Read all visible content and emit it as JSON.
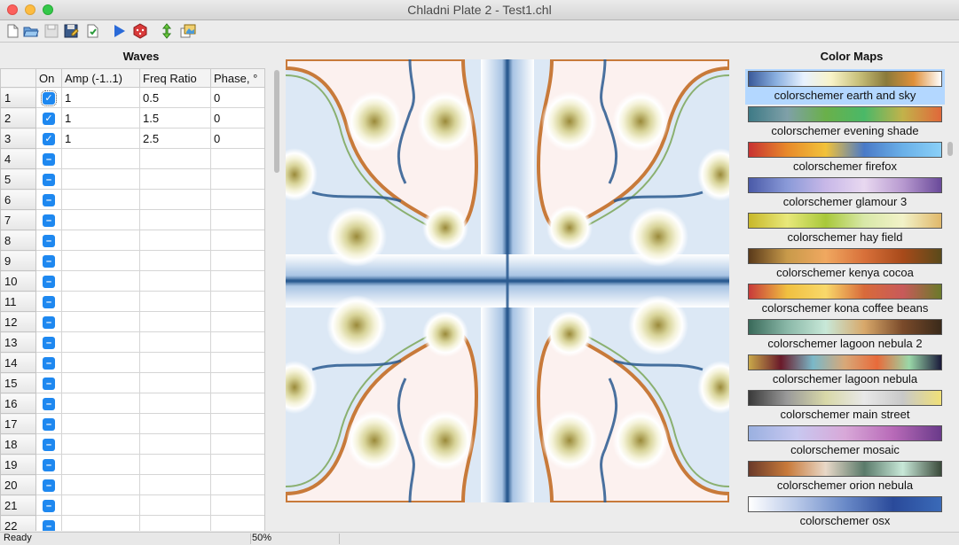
{
  "window": {
    "title": "Chladni Plate 2 - Test1.chl"
  },
  "toolbar": {
    "icons": [
      "new-file-icon",
      "open-folder-icon",
      "save-disabled-icon",
      "save-as-icon",
      "export-icon",
      "play-icon",
      "random-dice-icon",
      "animate-icon",
      "gallery-icon"
    ]
  },
  "waves": {
    "title": "Waves",
    "columns": [
      "",
      "On",
      "Amp (-1..1)",
      "Freq Ratio",
      "Phase, °"
    ],
    "rows": [
      {
        "n": "1",
        "on": true,
        "amp": "1",
        "freq": "0.5",
        "phase": "0"
      },
      {
        "n": "2",
        "on": true,
        "amp": "1",
        "freq": "1.5",
        "phase": "0"
      },
      {
        "n": "3",
        "on": true,
        "amp": "1",
        "freq": "2.5",
        "phase": "0"
      },
      {
        "n": "4",
        "on": false,
        "amp": "",
        "freq": "",
        "phase": ""
      },
      {
        "n": "5",
        "on": false,
        "amp": "",
        "freq": "",
        "phase": ""
      },
      {
        "n": "6",
        "on": false,
        "amp": "",
        "freq": "",
        "phase": ""
      },
      {
        "n": "7",
        "on": false,
        "amp": "",
        "freq": "",
        "phase": ""
      },
      {
        "n": "8",
        "on": false,
        "amp": "",
        "freq": "",
        "phase": ""
      },
      {
        "n": "9",
        "on": false,
        "amp": "",
        "freq": "",
        "phase": ""
      },
      {
        "n": "10",
        "on": false,
        "amp": "",
        "freq": "",
        "phase": ""
      },
      {
        "n": "11",
        "on": false,
        "amp": "",
        "freq": "",
        "phase": ""
      },
      {
        "n": "12",
        "on": false,
        "amp": "",
        "freq": "",
        "phase": ""
      },
      {
        "n": "13",
        "on": false,
        "amp": "",
        "freq": "",
        "phase": ""
      },
      {
        "n": "14",
        "on": false,
        "amp": "",
        "freq": "",
        "phase": ""
      },
      {
        "n": "15",
        "on": false,
        "amp": "",
        "freq": "",
        "phase": ""
      },
      {
        "n": "16",
        "on": false,
        "amp": "",
        "freq": "",
        "phase": ""
      },
      {
        "n": "17",
        "on": false,
        "amp": "",
        "freq": "",
        "phase": ""
      },
      {
        "n": "18",
        "on": false,
        "amp": "",
        "freq": "",
        "phase": ""
      },
      {
        "n": "19",
        "on": false,
        "amp": "",
        "freq": "",
        "phase": ""
      },
      {
        "n": "20",
        "on": false,
        "amp": "",
        "freq": "",
        "phase": ""
      },
      {
        "n": "21",
        "on": false,
        "amp": "",
        "freq": "",
        "phase": ""
      },
      {
        "n": "22",
        "on": false,
        "amp": "",
        "freq": "",
        "phase": ""
      }
    ],
    "check_on": "✓",
    "check_off": "–"
  },
  "colormaps": {
    "title": "Color Maps",
    "selected": 0,
    "items": [
      {
        "name": "colorschemer earth and sky",
        "colors": [
          "#3a5a9a",
          "#8ab0e0",
          "#e8f2ff",
          "#f8f3c8",
          "#c8c07a",
          "#8a7a3a",
          "#e0903a",
          "#ffffff"
        ]
      },
      {
        "name": "colorschemer evening shade",
        "colors": [
          "#3e7a86",
          "#7fa0a8",
          "#6ab04a",
          "#4ab868",
          "#c2b24a",
          "#e0683a"
        ]
      },
      {
        "name": "colorschemer firefox",
        "colors": [
          "#c83232",
          "#e88a2a",
          "#f2c23a",
          "#4a7ac8",
          "#6ab0e8",
          "#8ad0f8"
        ]
      },
      {
        "name": "colorschemer glamour 3",
        "colors": [
          "#4a5aa8",
          "#8a9ad8",
          "#c8b8e8",
          "#e8d8f0",
          "#b89ad0",
          "#6a4a9a"
        ]
      },
      {
        "name": "colorschemer hay field",
        "colors": [
          "#c8b82a",
          "#e8e87a",
          "#a8c83a",
          "#d8e8a8",
          "#f2f2c8",
          "#e0b86a"
        ]
      },
      {
        "name": "colorschemer kenya cocoa",
        "colors": [
          "#5a3a1a",
          "#c89a4a",
          "#f0a860",
          "#d8703a",
          "#a84a1a",
          "#5a4a1a"
        ]
      },
      {
        "name": "colorschemer kona coffee beans",
        "colors": [
          "#c83a3a",
          "#f0c040",
          "#f8d86a",
          "#d86a3a",
          "#c85a5a",
          "#6a7a2a"
        ]
      },
      {
        "name": "colorschemer lagoon nebula 2",
        "colors": [
          "#3a6a5a",
          "#8ab8a8",
          "#c8e8d8",
          "#d8a86a",
          "#7a4a2a",
          "#3a2a1a"
        ]
      },
      {
        "name": "colorschemer lagoon nebula",
        "colors": [
          "#c8a84a",
          "#6a1a2a",
          "#7ab8c8",
          "#d8a878",
          "#e86a3a",
          "#9ad8a8",
          "#1a1a3a"
        ]
      },
      {
        "name": "colorschemer main street",
        "colors": [
          "#3a3a3a",
          "#9a9a9a",
          "#d8d8a8",
          "#e8e8e8",
          "#c8c8c8",
          "#f0e078"
        ]
      },
      {
        "name": "colorschemer mosaic",
        "colors": [
          "#9ab0e0",
          "#c8c8f0",
          "#d8a8d8",
          "#b86ab8",
          "#6a3a8a"
        ]
      },
      {
        "name": "colorschemer orion nebula",
        "colors": [
          "#6a3a2a",
          "#c87a3a",
          "#e8d8c8",
          "#5a7a6a",
          "#c8e8d8",
          "#3a4a3a"
        ]
      },
      {
        "name": "colorschemer osx",
        "colors": [
          "#ffffff",
          "#b8c8e8",
          "#6a8ac8",
          "#2a4a9a",
          "#3a6ab8"
        ]
      }
    ]
  },
  "status": {
    "text": "Ready",
    "zoom": "50%"
  }
}
